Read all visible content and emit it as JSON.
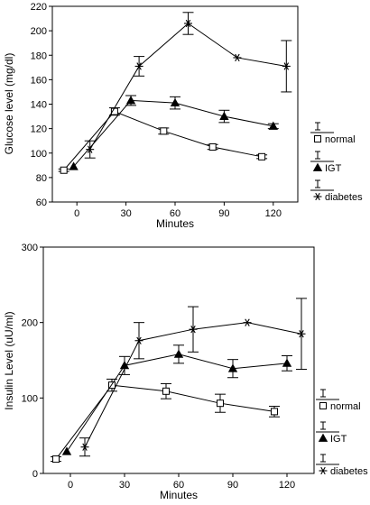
{
  "chart_data": [
    {
      "type": "line",
      "xlabel": "Minutes",
      "ylabel": "Glucose level (mg/dl)",
      "xlim": [
        -15,
        135
      ],
      "ylim": [
        60,
        220
      ],
      "xticks": [
        0,
        30,
        60,
        90,
        120
      ],
      "yticks": [
        60,
        80,
        100,
        120,
        140,
        160,
        180,
        200,
        220
      ],
      "grid": false,
      "legend_position": "right",
      "series": [
        {
          "name": "normal",
          "marker": "square",
          "x": [
            -8,
            23,
            53,
            83,
            113
          ],
          "y": [
            86,
            134,
            118,
            105,
            97
          ],
          "err": [
            1,
            3,
            2.5,
            2,
            1.5
          ]
        },
        {
          "name": "IGT",
          "marker": "triangle",
          "x": [
            -2,
            33,
            60,
            90,
            120
          ],
          "y": [
            89,
            143,
            141,
            130,
            122
          ],
          "err": [
            0,
            4,
            5,
            5,
            2
          ]
        },
        {
          "name": "diabetes",
          "marker": "asterisk",
          "x": [
            8,
            38,
            68,
            98,
            128
          ],
          "y": [
            103,
            171,
            206,
            178,
            171
          ],
          "err": [
            7,
            8,
            9,
            0,
            21
          ]
        }
      ]
    },
    {
      "type": "line",
      "xlabel": "Minutes",
      "ylabel": "Insulin Level (uU/ml)",
      "xlim": [
        -15,
        135
      ],
      "ylim": [
        0,
        300
      ],
      "xticks": [
        0,
        30,
        60,
        90,
        120
      ],
      "yticks": [
        0,
        100,
        200,
        300
      ],
      "grid": false,
      "legend_position": "right",
      "series": [
        {
          "name": "normal",
          "marker": "square",
          "x": [
            -8,
            23,
            53,
            83,
            113
          ],
          "y": [
            19,
            117,
            109,
            93,
            82
          ],
          "err": [
            3,
            8,
            10,
            12,
            7
          ]
        },
        {
          "name": "IGT",
          "marker": "triangle",
          "x": [
            -2,
            30,
            60,
            90,
            120
          ],
          "y": [
            29,
            143,
            158,
            139,
            146
          ],
          "err": [
            0,
            12,
            12,
            12,
            10
          ]
        },
        {
          "name": "diabetes",
          "marker": "asterisk",
          "x": [
            8,
            38,
            68,
            98,
            128
          ],
          "y": [
            35,
            176,
            191,
            200,
            185
          ],
          "err": [
            12,
            24,
            30,
            0,
            47
          ]
        }
      ]
    }
  ]
}
